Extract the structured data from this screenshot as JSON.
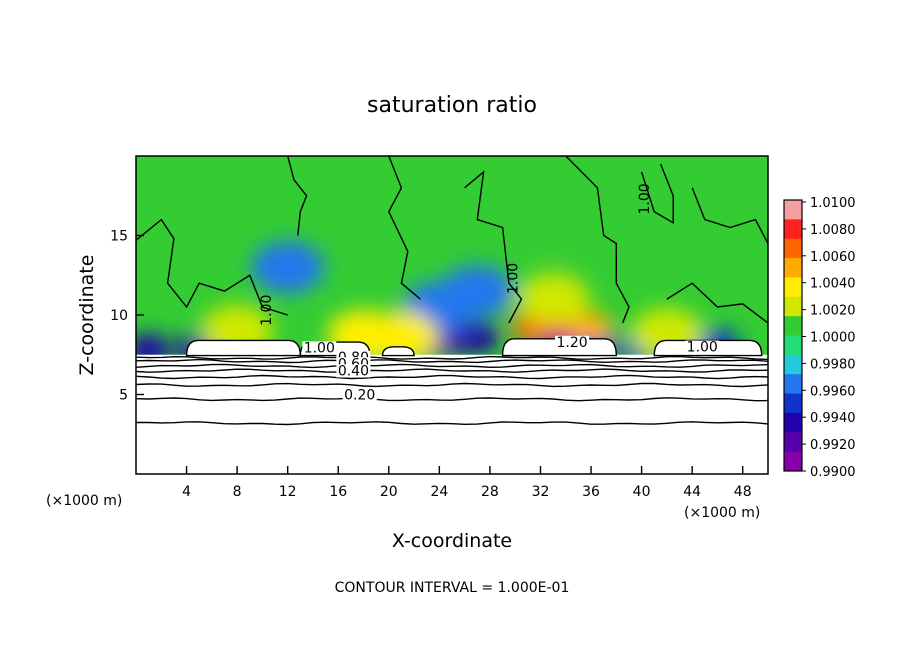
{
  "chart_data": {
    "type": "heatmap",
    "title": "saturation ratio",
    "xlabel": "X-coordinate",
    "ylabel": "Z-coordinate",
    "x_unit": "(×1000 m)",
    "y_unit": "(×1000 m)",
    "xlim": [
      0,
      50
    ],
    "ylim": [
      0,
      20
    ],
    "x_ticks": [
      4,
      8,
      12,
      16,
      20,
      24,
      28,
      32,
      36,
      40,
      44,
      48
    ],
    "y_ticks": [
      5,
      10,
      15
    ],
    "grid": false,
    "colorbar": {
      "placement": "right",
      "labels": [
        "1.0100",
        "1.0080",
        "1.0060",
        "1.0040",
        "1.0020",
        "1.0000",
        "0.9980",
        "0.9960",
        "0.9940",
        "0.9920",
        "0.9900"
      ],
      "colors": [
        "#f4a0a0",
        "#ff2020",
        "#ff6600",
        "#ffaa00",
        "#ffee00",
        "#d0e800",
        "#33cc33",
        "#22dd77",
        "#22ccdd",
        "#2277ee",
        "#1133cc",
        "#2200aa",
        "#5500aa",
        "#8800aa"
      ]
    },
    "contour_labels": [
      "1.00",
      "1.00",
      "1.00",
      "1.00",
      "1.20",
      "0.80",
      "0.60",
      "0.40",
      "0.20",
      "1.00"
    ],
    "cloud_base_z": 7.5,
    "layer_contour_levels": [
      0.2,
      0.4,
      0.6,
      0.8,
      1.0
    ],
    "layer_contour_heights_z": [
      3.2,
      4.7,
      5.6,
      6.1,
      6.5,
      6.8,
      7.1,
      7.3
    ],
    "saturated_regions": [
      {
        "x0": 4,
        "x1": 13,
        "z": 8.4
      },
      {
        "x0": 13,
        "x1": 18.5,
        "z": 8.3
      },
      {
        "x0": 19.5,
        "x1": 22,
        "z": 8.0
      },
      {
        "x0": 29,
        "x1": 38,
        "z": 8.5
      },
      {
        "x0": 41,
        "x1": 49.5,
        "z": 8.4
      }
    ],
    "anomaly_spots": [
      {
        "x": 1,
        "z": 7.8,
        "value": 0.994
      },
      {
        "x": 5,
        "z": 7.9,
        "value": 0.994
      },
      {
        "x": 20,
        "z": 8.0,
        "value": 0.994
      },
      {
        "x": 23.5,
        "z": 8.2,
        "value": 0.991
      },
      {
        "x": 25,
        "z": 8.6,
        "value": 0.992
      },
      {
        "x": 27,
        "z": 8.6,
        "value": 0.993
      },
      {
        "x": 24,
        "z": 10.5,
        "value": 0.996
      },
      {
        "x": 27,
        "z": 11.5,
        "value": 0.9965
      },
      {
        "x": 12,
        "z": 13.0,
        "value": 0.997
      },
      {
        "x": 35,
        "z": 8.3,
        "value": 0.9955
      },
      {
        "x": 40,
        "z": 7.9,
        "value": 0.995
      },
      {
        "x": 46,
        "z": 8.1,
        "value": 0.995
      },
      {
        "x": 31.5,
        "z": 9.2,
        "value": 1.006
      },
      {
        "x": 34,
        "z": 9.4,
        "value": 1.008
      },
      {
        "x": 36,
        "z": 9.2,
        "value": 1.0055
      },
      {
        "x": 33,
        "z": 11.0,
        "value": 1.002
      },
      {
        "x": 33,
        "z": 15.5,
        "value": 1.001
      },
      {
        "x": 18,
        "z": 8.7,
        "value": 1.004
      },
      {
        "x": 21,
        "z": 8.6,
        "value": 1.003
      },
      {
        "x": 8,
        "z": 9.0,
        "value": 1.002
      },
      {
        "x": 42,
        "z": 8.8,
        "value": 1.002
      }
    ]
  },
  "footer": {
    "contour_interval": "CONTOUR INTERVAL = 1.000E-01"
  }
}
